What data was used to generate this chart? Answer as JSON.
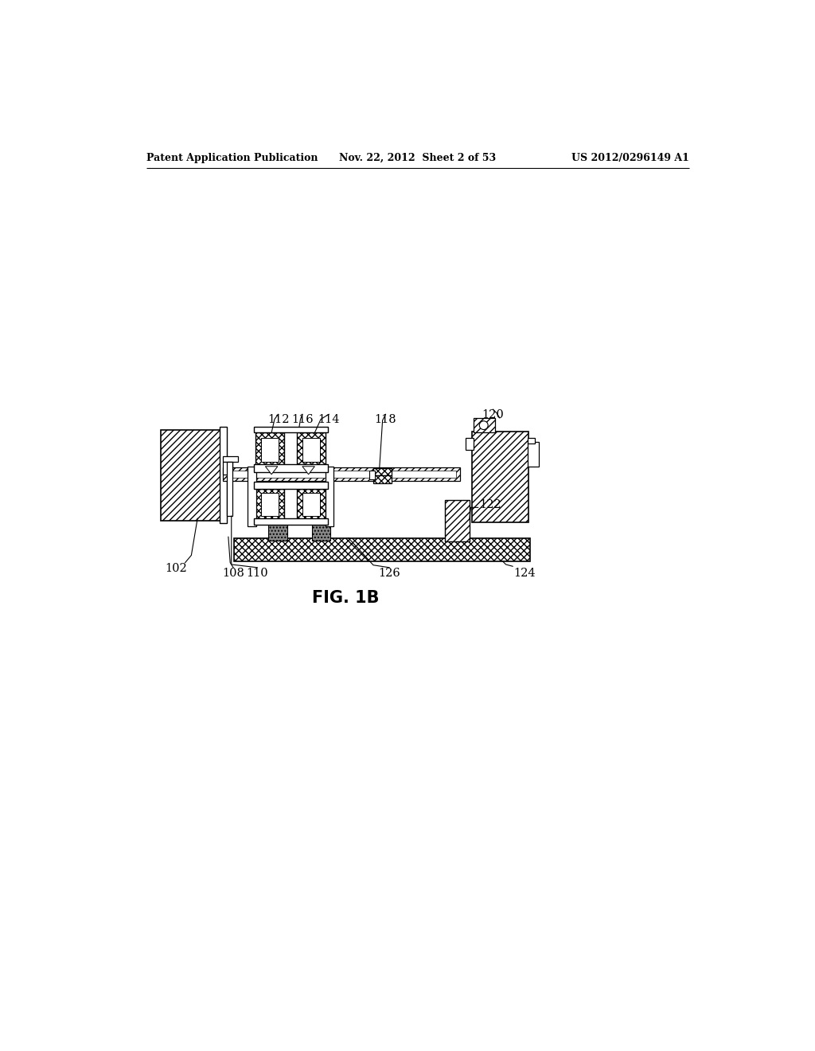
{
  "bg_color": "#ffffff",
  "header_left": "Patent Application Publication",
  "header_mid": "Nov. 22, 2012  Sheet 2 of 53",
  "header_right": "US 2012/0296149 A1",
  "fig_label": "FIG. 1B"
}
